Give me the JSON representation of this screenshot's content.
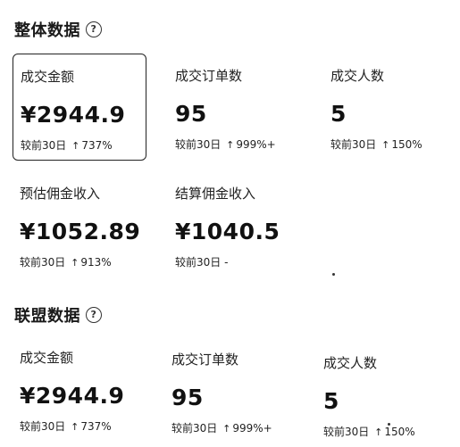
{
  "overall": {
    "title": "整体数据",
    "help_glyph": "?",
    "metrics": [
      {
        "label": "成交金额",
        "value": "¥2944.9",
        "compare_prefix": "较前30日",
        "arrow": "↑",
        "compare_value": "737%"
      },
      {
        "label": "成交订单数",
        "value": "95",
        "compare_prefix": "较前30日",
        "arrow": "↑",
        "compare_value": "999%+"
      },
      {
        "label": "成交人数",
        "value": "5",
        "compare_prefix": "较前30日",
        "arrow": "↑",
        "compare_value": "150%"
      },
      {
        "label": "预估佣金收入",
        "value": "¥1052.89",
        "compare_prefix": "较前30日",
        "arrow": "↑",
        "compare_value": "913%"
      },
      {
        "label": "结算佣金收入",
        "value": "¥1040.5",
        "compare_prefix": "较前30日",
        "arrow": "",
        "compare_value": "-"
      }
    ]
  },
  "alliance": {
    "title": "联盟数据",
    "help_glyph": "?",
    "metrics": [
      {
        "label": "成交金额",
        "value": "¥2944.9",
        "compare_prefix": "较前30日",
        "arrow": "↑",
        "compare_value": "737%"
      },
      {
        "label": "成交订单数",
        "value": "95",
        "compare_prefix": "较前30日",
        "arrow": "↑",
        "compare_value": "999%+"
      },
      {
        "label": "成交人数",
        "value": "5",
        "compare_prefix": "较前30日",
        "arrow": "↑",
        "compare_value": "150%"
      }
    ]
  }
}
